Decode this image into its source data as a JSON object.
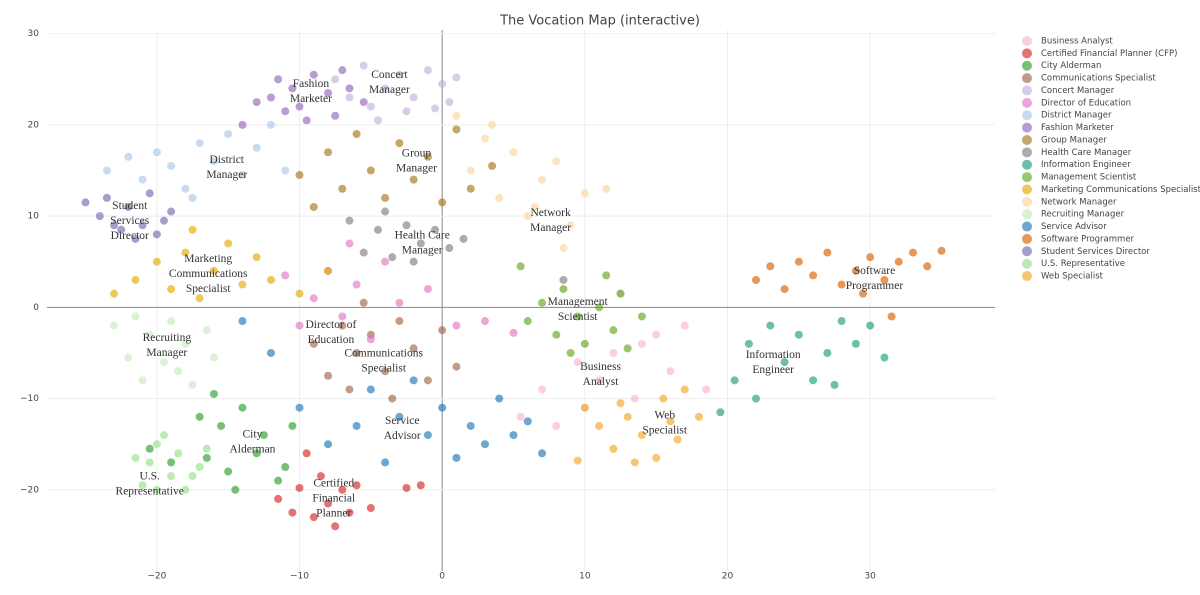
{
  "chart_data": {
    "type": "scatter",
    "title": "The Vocation Map (interactive)",
    "xlim": [
      -27.7,
      38.75
    ],
    "ylim": [
      -28.9,
      30.4
    ],
    "xticks": [
      {
        "value": -20,
        "label": "−20"
      },
      {
        "value": -10,
        "label": "−10"
      },
      0,
      10,
      20,
      30
    ],
    "yticks": [
      {
        "value": -20,
        "label": "−20"
      },
      {
        "value": -10,
        "label": "−10"
      },
      0,
      10,
      20,
      30
    ],
    "grid": true,
    "legend": "right",
    "series": [
      {
        "name": "Business Analyst",
        "color": "#f7b6d2",
        "x": [
          5.5,
          7,
          8,
          9.5,
          11,
          12,
          13.5,
          15,
          16,
          17,
          18.5,
          14,
          10,
          12.5
        ],
        "y": [
          -12,
          -9,
          -13,
          -6,
          -8,
          -5,
          -10,
          -3,
          -7,
          -2,
          -9,
          -4,
          -11,
          1.5
        ]
      },
      {
        "name": "Certified Financial Planner (CFP)",
        "color": "#d62728",
        "x": [
          -11.5,
          -10.5,
          -10,
          -9,
          -8.5,
          -8,
          -7.5,
          -7,
          -6.5,
          -6,
          -5,
          -2.5,
          -1.5,
          -9.5
        ],
        "y": [
          -21,
          -22.5,
          -19.8,
          -23,
          -18.5,
          -21.5,
          -24,
          -20,
          -22.5,
          -19.5,
          -22,
          -19.8,
          -19.5,
          -16
        ]
      },
      {
        "name": "City Alderman",
        "color": "#2ca02c",
        "x": [
          -20.5,
          -19,
          -17,
          -16.5,
          -15.5,
          -15,
          -14,
          -13,
          -12.5,
          -11.5,
          -10.5,
          -14.5,
          -16,
          -11
        ],
        "y": [
          -15.5,
          -17,
          -12,
          -16.5,
          -13,
          -18,
          -11,
          -16,
          -14,
          -19,
          -13,
          -20,
          -9.5,
          -17.5
        ]
      },
      {
        "name": "Communications Specialist",
        "color": "#a0674b",
        "x": [
          -9,
          -8,
          -7,
          -6.5,
          -6,
          -5,
          -4,
          -3,
          -2,
          -1,
          0,
          1,
          -5.5,
          -3.5
        ],
        "y": [
          -4,
          -7.5,
          -2,
          -9,
          -5,
          -3,
          -7,
          -1.5,
          -4.5,
          -8,
          -2.5,
          -6.5,
          0.5,
          -10
        ]
      },
      {
        "name": "Concert Manager",
        "color": "#c5b0d5",
        "x": [
          -7.5,
          -6.5,
          -5.5,
          -5,
          -4,
          -3,
          -2,
          -1,
          0,
          0.5,
          1,
          -2.5,
          -4.5,
          -0.5
        ],
        "y": [
          25,
          23,
          26.5,
          22,
          24,
          25.5,
          23,
          26,
          24.5,
          22.5,
          25.2,
          21.5,
          20.5,
          21.8
        ]
      },
      {
        "name": "Director of Education",
        "color": "#e377c2",
        "x": [
          -11,
          -10,
          -9,
          -8,
          -7,
          -6,
          -5,
          -4,
          -3,
          -1,
          1,
          3,
          5,
          -6.5
        ],
        "y": [
          3.5,
          -2,
          1,
          4,
          -1,
          2.5,
          -3.5,
          5,
          0.5,
          2,
          -2,
          -1.5,
          -2.8,
          7
        ]
      },
      {
        "name": "District Manager",
        "color": "#aec7e8",
        "x": [
          -23.5,
          -22,
          -21,
          -20,
          -19,
          -18,
          -17,
          -16,
          -15,
          -14,
          -13,
          -12,
          -11,
          -17.5
        ],
        "y": [
          15,
          16.5,
          14,
          17,
          15.5,
          13,
          18,
          16,
          19,
          14.5,
          17.5,
          20,
          15,
          12
        ]
      },
      {
        "name": "Fashion Marketer",
        "color": "#9467bd",
        "x": [
          -14,
          -13,
          -12,
          -11,
          -10.5,
          -10,
          -9,
          -8,
          -7,
          -6.5,
          -9.5,
          -11.5,
          -7.5,
          -5.5
        ],
        "y": [
          20,
          22.5,
          23,
          21.5,
          24,
          22,
          25.5,
          23.5,
          26,
          24,
          20.5,
          25,
          21,
          22.5
        ]
      },
      {
        "name": "Group Manager",
        "color": "#a6761d",
        "x": [
          -10,
          -9,
          -8,
          -7,
          -6,
          -5,
          -4,
          -3,
          -2,
          -1,
          0,
          1,
          2,
          3.5
        ],
        "y": [
          14.5,
          11,
          17,
          13,
          19,
          15,
          12,
          18,
          14,
          16.5,
          11.5,
          19.5,
          13,
          15.5
        ]
      },
      {
        "name": "Health Care Manager",
        "color": "#7f7f7f",
        "x": [
          -6.5,
          -5.5,
          -4.5,
          -3.5,
          -2.5,
          -1.5,
          -0.5,
          0.5,
          1.5,
          -4,
          -2,
          8.5
        ],
        "y": [
          9.5,
          6,
          8.5,
          5.5,
          9,
          7,
          8.5,
          6.5,
          7.5,
          10.5,
          5,
          3
        ]
      },
      {
        "name": "Information Engineer",
        "color": "#1b9e77",
        "x": [
          19.5,
          20.5,
          21.5,
          22,
          23,
          24,
          25,
          26,
          27,
          28,
          29,
          30,
          31,
          27.5
        ],
        "y": [
          -11.5,
          -8,
          -4,
          -10,
          -2,
          -6,
          -3,
          -8,
          -5,
          -1.5,
          -4,
          -2,
          -5.5,
          -8.5
        ]
      },
      {
        "name": "Management Scientist",
        "color": "#66a61e",
        "x": [
          6,
          7,
          8,
          8.5,
          9.5,
          10,
          11,
          12,
          12.5,
          13,
          14,
          11.5,
          9,
          5.5
        ],
        "y": [
          -1.5,
          0.5,
          -3,
          2,
          -1,
          -4,
          0,
          -2.5,
          1.5,
          -4.5,
          -1,
          3.5,
          -5,
          4.5
        ]
      },
      {
        "name": "Marketing Communications Specialist",
        "color": "#e6ab02",
        "x": [
          -23,
          -21.5,
          -20,
          -19,
          -18,
          -17,
          -16,
          -15,
          -14,
          -13,
          -12,
          -10,
          -8,
          -17.5
        ],
        "y": [
          1.5,
          3,
          5,
          2,
          6,
          1,
          4,
          7,
          2.5,
          5.5,
          3,
          1.5,
          4,
          8.5
        ]
      },
      {
        "name": "Network Manager",
        "color": "#fdd49e",
        "x": [
          1,
          2,
          3,
          4,
          5,
          6,
          7,
          8,
          9,
          10,
          3.5,
          6.5,
          8.5,
          11.5
        ],
        "y": [
          21,
          15,
          18.5,
          12,
          17,
          10,
          14,
          16,
          9,
          12.5,
          20,
          11,
          6.5,
          13
        ]
      },
      {
        "name": "Recruiting Manager",
        "color": "#c7e9c0",
        "x": [
          -23,
          -22,
          -21,
          -20.5,
          -19.5,
          -19,
          -18,
          -17.5,
          -16.5,
          -16,
          -21.5,
          -18.5
        ],
        "y": [
          -2,
          -5.5,
          -8,
          -3,
          -6,
          -1.5,
          -4,
          -8.5,
          -2.5,
          -5.5,
          -1,
          -7
        ]
      },
      {
        "name": "Service Advisor",
        "color": "#1f77b4",
        "x": [
          -14,
          -12,
          -10,
          -8,
          -6,
          -4,
          -2,
          -1,
          0,
          1,
          2,
          3,
          4,
          5,
          6,
          7,
          -5,
          -3
        ],
        "y": [
          -1.5,
          -5,
          -11,
          -15,
          -13,
          -17,
          -8,
          -14,
          -11,
          -16.5,
          -13,
          -15,
          -10,
          -14,
          -12.5,
          -16,
          -9,
          -12
        ]
      },
      {
        "name": "Software Programmer",
        "color": "#d95f02",
        "x": [
          22,
          23,
          24,
          25,
          26,
          27,
          28,
          29,
          30,
          31,
          32,
          33,
          34,
          35,
          29.5,
          31.5
        ],
        "y": [
          3,
          4.5,
          2,
          5,
          3.5,
          6,
          2.5,
          4,
          5.5,
          3,
          5,
          6,
          4.5,
          6.2,
          1.5,
          -1
        ]
      },
      {
        "name": "Student Services Director",
        "color": "#756bb1",
        "x": [
          -25,
          -24,
          -23.5,
          -22.5,
          -22,
          -21,
          -20.5,
          -20,
          -19,
          -23,
          -21.5,
          -19.5
        ],
        "y": [
          11.5,
          10,
          12,
          8.5,
          11,
          9,
          12.5,
          8,
          10.5,
          9,
          7.5,
          9.5
        ]
      },
      {
        "name": "U.S. Representative",
        "color": "#98df8a",
        "x": [
          -21,
          -20.5,
          -20,
          -19,
          -18.5,
          -18,
          -17,
          -16.5,
          -21.5,
          -19.5,
          -17.5,
          -20
        ],
        "y": [
          -19.5,
          -17,
          -15,
          -18.5,
          -16,
          -20,
          -17.5,
          -15.5,
          -16.5,
          -14,
          -18.5,
          -20
        ]
      },
      {
        "name": "Web Specialist",
        "color": "#f5a623",
        "x": [
          10,
          11,
          12,
          13,
          14,
          15,
          16,
          17,
          18,
          13.5,
          15.5,
          16.5,
          12.5,
          9.5
        ],
        "y": [
          -11,
          -13,
          -15.5,
          -12,
          -14,
          -16.5,
          -12.5,
          -9,
          -12,
          -17,
          -10,
          -14.5,
          -10.5,
          -16.8
        ]
      }
    ],
    "annotations": [
      {
        "lines": [
          "Concert",
          "Manager"
        ],
        "x": -3.7,
        "y": 24.6
      },
      {
        "lines": [
          "Fashion",
          "Marketer"
        ],
        "x": -9.2,
        "y": 23.6
      },
      {
        "lines": [
          "District",
          "Manager"
        ],
        "x": -15.1,
        "y": 15.3
      },
      {
        "lines": [
          "Group",
          "Manager"
        ],
        "x": -1.8,
        "y": 16
      },
      {
        "lines": [
          "Student",
          "Services",
          "Director"
        ],
        "x": -21.9,
        "y": 9.4
      },
      {
        "lines": [
          "Network",
          "Manager"
        ],
        "x": 7.6,
        "y": 9.5
      },
      {
        "lines": [
          "Health Care",
          "Manager"
        ],
        "x": -1.4,
        "y": 7
      },
      {
        "lines": [
          "Marketing",
          "Communications",
          "Specialist"
        ],
        "x": -16.4,
        "y": 3.6
      },
      {
        "lines": [
          "Software",
          "Programmer"
        ],
        "x": 30.3,
        "y": 3.1
      },
      {
        "lines": [
          "Management",
          "Scientist"
        ],
        "x": 9.5,
        "y": -0.3
      },
      {
        "lines": [
          "Director of",
          "Education"
        ],
        "x": -7.8,
        "y": -2.8
      },
      {
        "lines": [
          "Recruiting",
          "Manager"
        ],
        "x": -19.3,
        "y": -4.2
      },
      {
        "lines": [
          "Communications",
          "Specialist"
        ],
        "x": -4.1,
        "y": -5.9
      },
      {
        "lines": [
          "Information",
          "Engineer"
        ],
        "x": 23.2,
        "y": -6.1
      },
      {
        "lines": [
          "Business",
          "Analyst"
        ],
        "x": 11.1,
        "y": -7.4
      },
      {
        "lines": [
          "Web",
          "Specialist"
        ],
        "x": 15.6,
        "y": -12.7
      },
      {
        "lines": [
          "Service",
          "Advisor"
        ],
        "x": -2.8,
        "y": -13.3
      },
      {
        "lines": [
          "City",
          "Alderman"
        ],
        "x": -13.3,
        "y": -14.8
      },
      {
        "lines": [
          "U.S.",
          "Representative"
        ],
        "x": -20.5,
        "y": -19.4
      },
      {
        "lines": [
          "Certified",
          "Financial",
          "Planner"
        ],
        "x": -7.6,
        "y": -21
      }
    ]
  }
}
